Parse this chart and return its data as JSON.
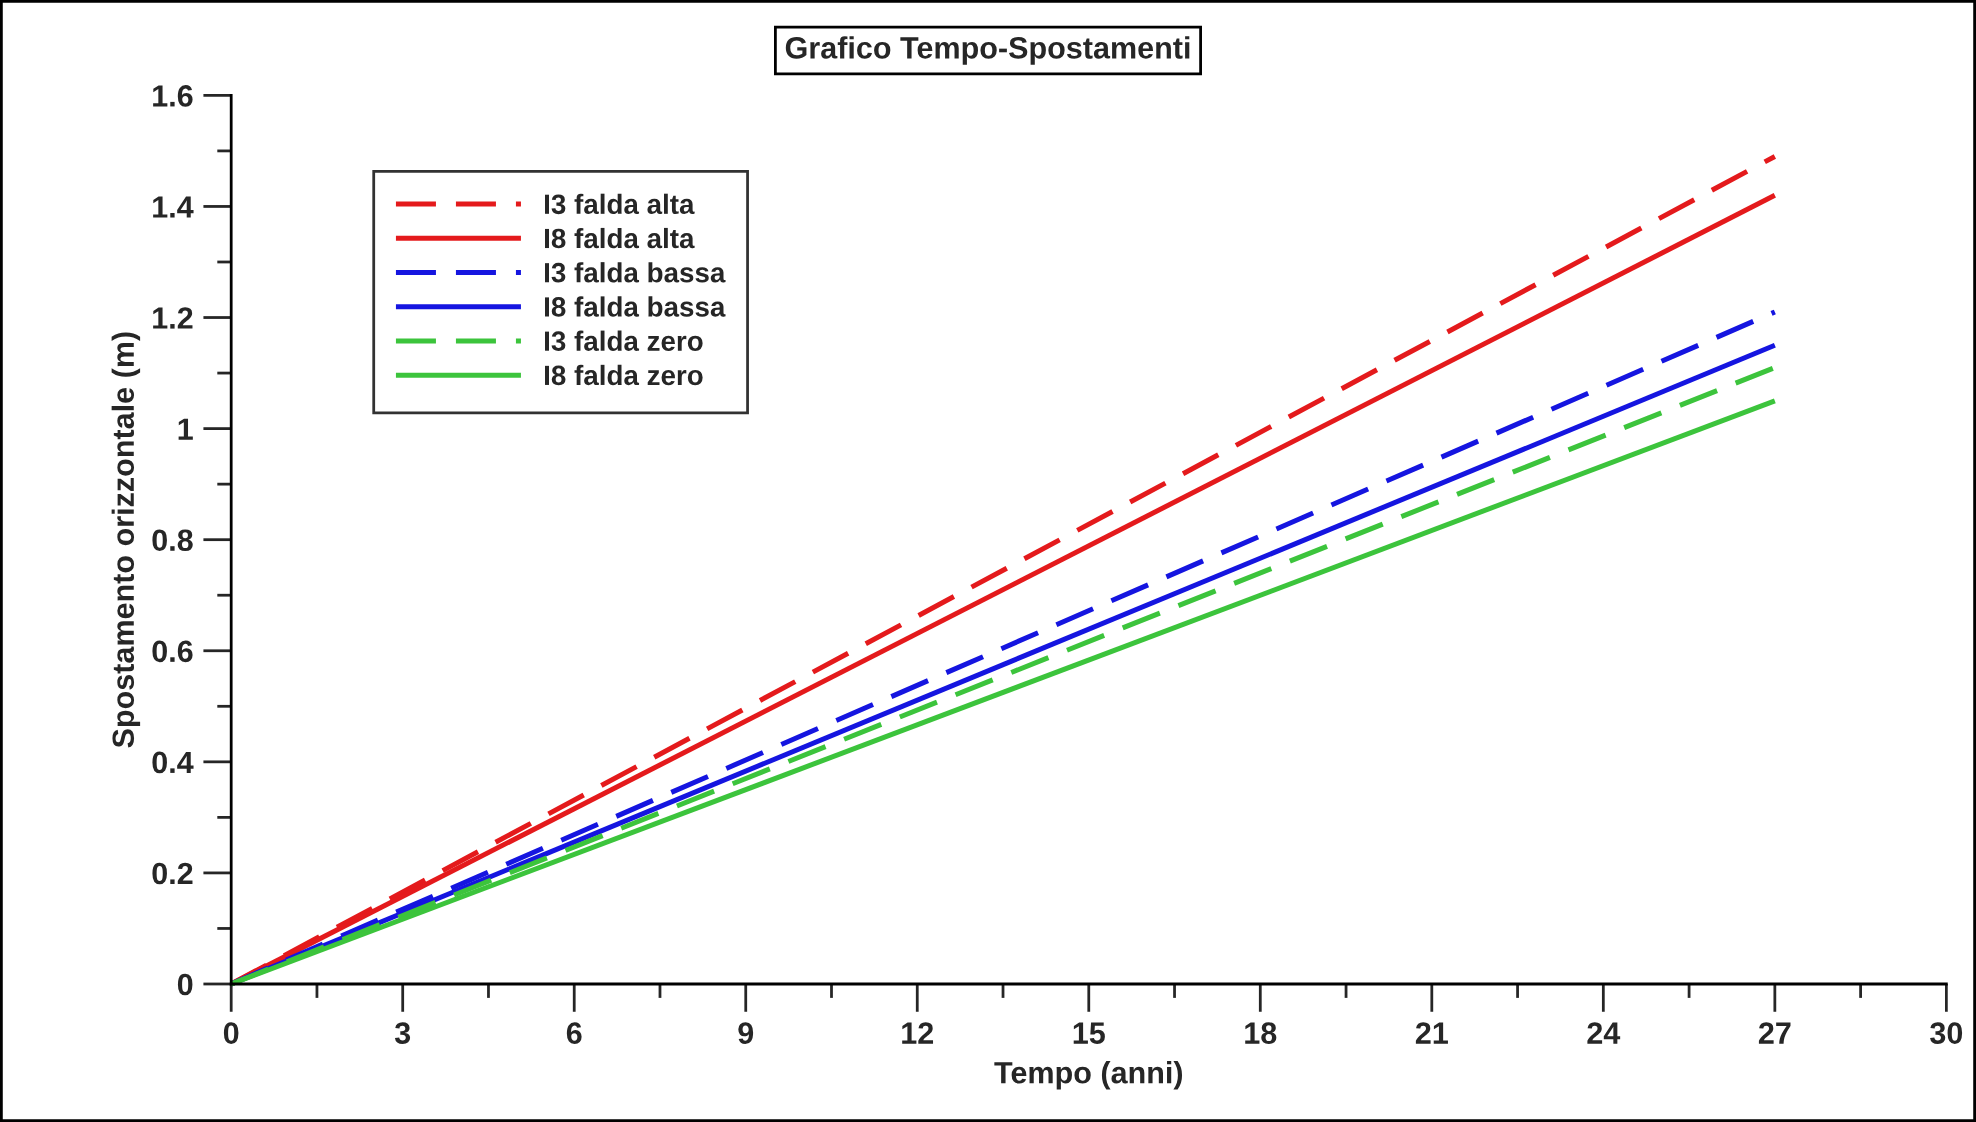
{
  "chart_data": {
    "type": "line",
    "title": "Grafico Tempo-Spostamenti",
    "xlabel": "Tempo (anni)",
    "ylabel": "Spostamento orizzontale (m)",
    "xlim": [
      0,
      30
    ],
    "xticks": [
      0,
      3,
      6,
      9,
      12,
      15,
      18,
      21,
      24,
      27,
      30
    ],
    "ylim": [
      0,
      1.6
    ],
    "yticks": [
      0,
      0.2,
      0.4,
      0.6,
      0.8,
      1,
      1.2,
      1.4,
      1.6
    ],
    "grid": false,
    "legend": "top left",
    "marker": "none",
    "x": [
      0,
      27
    ],
    "series": [
      {
        "name": "I3 falda alta",
        "color": "#e41a1c",
        "line_style": "dashed",
        "values": [
          0,
          1.49
        ]
      },
      {
        "name": "I8 falda alta",
        "color": "#e41a1c",
        "line_style": "solid",
        "values": [
          0,
          1.42
        ]
      },
      {
        "name": "I3 falda bassa",
        "color": "#1515e0",
        "line_style": "dashed",
        "values": [
          0,
          1.21
        ]
      },
      {
        "name": "I8 falda bassa",
        "color": "#1515e0",
        "line_style": "solid",
        "values": [
          0,
          1.15
        ]
      },
      {
        "name": "I3 falda zero",
        "color": "#3cc43c",
        "line_style": "dashed",
        "values": [
          0,
          1.11
        ]
      },
      {
        "name": "I8 falda zero",
        "color": "#3cc43c",
        "line_style": "solid",
        "values": [
          0,
          1.05
        ]
      }
    ]
  }
}
